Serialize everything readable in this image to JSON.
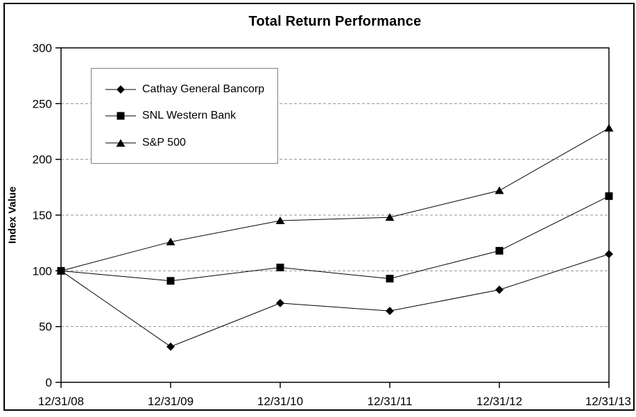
{
  "chart_data": {
    "type": "line",
    "title": "Total Return Performance",
    "xlabel": "",
    "ylabel": "Index Value",
    "categories": [
      "12/31/08",
      "12/31/09",
      "12/31/10",
      "12/31/11",
      "12/31/12",
      "12/31/13"
    ],
    "series": [
      {
        "name": "Cathay General Bancorp",
        "marker": "diamond",
        "values": [
          100,
          32,
          71,
          64,
          83,
          115
        ]
      },
      {
        "name": "SNL Western Bank",
        "marker": "square",
        "values": [
          100,
          91,
          103,
          93,
          118,
          167
        ]
      },
      {
        "name": "S&P 500",
        "marker": "triangle",
        "values": [
          100,
          126,
          145,
          148,
          172,
          228
        ]
      }
    ],
    "ylim": [
      0,
      300
    ],
    "yticks": [
      0,
      50,
      100,
      150,
      200,
      250,
      300
    ],
    "grid": "horizontal-dashed",
    "legend_position": "upper-left-inside",
    "colors": {
      "line": "#000000",
      "marker": "#000000",
      "grid": "#909090",
      "legend_border": "#808080",
      "frame_border": "#000000",
      "background": "#ffffff"
    }
  }
}
